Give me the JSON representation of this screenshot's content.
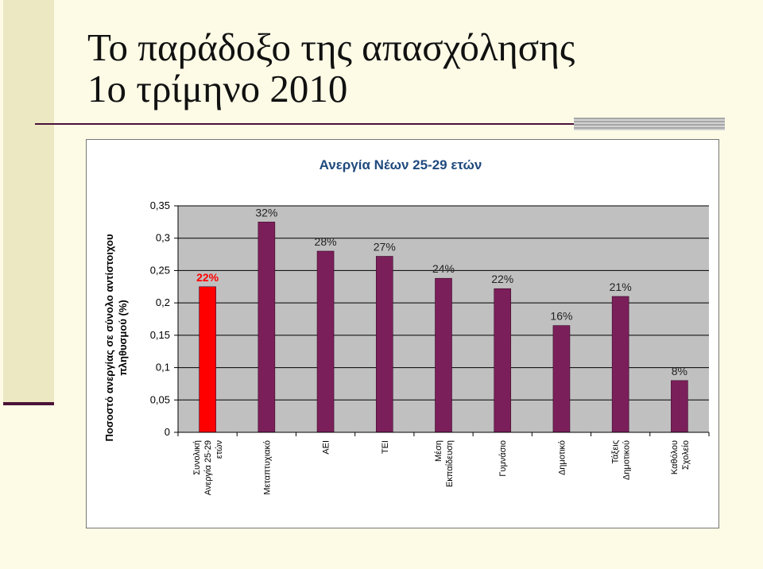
{
  "slide": {
    "title_line1": "Το παράδοξο της απασχόλησης",
    "title_line2": "1ο τρίμηνο 2010"
  },
  "chart_data": {
    "type": "bar",
    "title": "Ανεργία Νέων 25-29 ετών",
    "ylabel_line1": "Ποσοστό ανεργίας σε σύνολο αντίστοιχου",
    "ylabel_line2": "πληθυσμού (%)",
    "xlabel": "",
    "ylim": [
      0,
      0.35
    ],
    "yticks": [
      {
        "value": 0,
        "label": "0"
      },
      {
        "value": 0.05,
        "label": "0,05"
      },
      {
        "value": 0.1,
        "label": "0,1"
      },
      {
        "value": 0.15,
        "label": "0,15"
      },
      {
        "value": 0.2,
        "label": "0,2"
      },
      {
        "value": 0.25,
        "label": "0,25"
      },
      {
        "value": 0.3,
        "label": "0,3"
      },
      {
        "value": 0.35,
        "label": "0,35"
      }
    ],
    "grid": true,
    "categories": [
      [
        "Συνολική",
        "Ανεργία 25-29",
        "ετών"
      ],
      [
        "Μεταπτυχιακό"
      ],
      [
        "ΑΕΙ"
      ],
      [
        "ΤΕΙ"
      ],
      [
        "Μέση",
        "Εκπαίδευση"
      ],
      [
        "Γυμνάσιο"
      ],
      [
        "Δημοτικό"
      ],
      [
        "Τάξεις",
        "Δημοτικού"
      ],
      [
        "Καθόλου",
        "Σχολείο"
      ]
    ],
    "values": [
      0.225,
      0.325,
      0.28,
      0.272,
      0.238,
      0.222,
      0.165,
      0.21,
      0.08
    ],
    "data_labels": [
      "22%",
      "32%",
      "28%",
      "27%",
      "24%",
      "22%",
      "16%",
      "21%",
      "8%"
    ],
    "colors": {
      "highlight": "#ff0000",
      "bar": "#7b1f5a",
      "plot_bg": "#c0c0c0",
      "grid": "#000000",
      "title": "#1f497d",
      "highlight_label": "#ff0000",
      "label": "#222222"
    },
    "highlight_index": 0
  }
}
